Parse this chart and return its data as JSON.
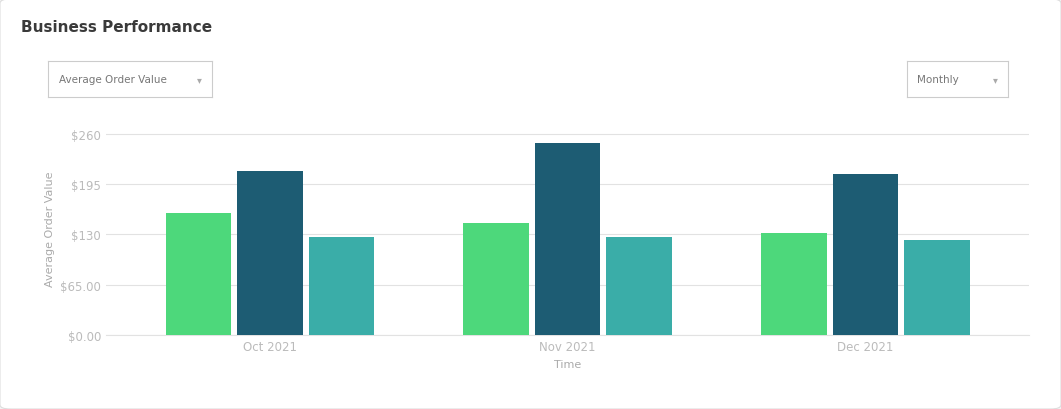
{
  "title": "Business Performance",
  "xlabel": "Time",
  "ylabel": "Average Order Value",
  "categories": [
    "Oct 2021",
    "Nov 2021",
    "Dec 2021"
  ],
  "series": {
    "Retail LLC": [
      158,
      145,
      132
    ],
    "Peer Group (median)": [
      212,
      248,
      208
    ],
    "Ecommerce, Electronics (median)": [
      127,
      127,
      123
    ]
  },
  "colors": {
    "Retail LLC": "#4dd87b",
    "Peer Group (median)": "#1d5c73",
    "Ecommerce, Electronics (median)": "#3aada8"
  },
  "yticks": [
    0,
    65,
    130,
    195,
    260
  ],
  "ytick_labels": [
    "$0.00",
    "$65.00",
    "$130",
    "$195",
    "$260"
  ],
  "ylim": [
    0,
    275
  ],
  "background_color": "#f4f4f4",
  "card_color": "#ffffff",
  "panel_color": "#ffffff",
  "grid_color": "#e2e2e2",
  "bar_width": 0.22,
  "bar_gap": 0.02,
  "title_fontsize": 11,
  "axis_label_fontsize": 8,
  "tick_fontsize": 8.5,
  "legend_fontsize": 8.5,
  "title_color": "#3a3a3a",
  "axis_label_color": "#aaaaaa",
  "tick_color": "#bbbbbb",
  "dropdown_bg": "#ffffff",
  "dropdown_border": "#cccccc",
  "dropdown_text": "#777777",
  "dropdown_arrow": "#aaaaaa"
}
